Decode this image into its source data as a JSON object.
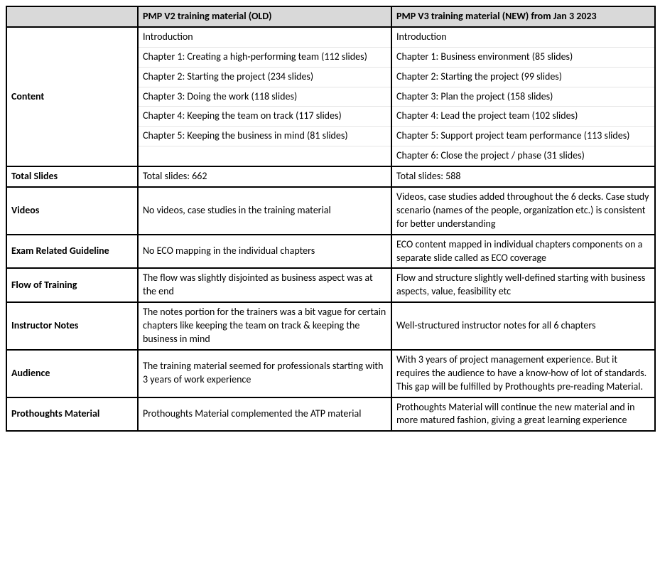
{
  "header": {
    "col1": "",
    "col2": "PMP V2 training material (OLD)",
    "col3": "PMP V3 training material (NEW) from Jan 3 2023"
  },
  "content": {
    "label": "Content",
    "rows": [
      {
        "old": "Introduction",
        "new": "Introduction"
      },
      {
        "old": "Chapter 1: Creating a high-performing team (112 slides)",
        "new": "Chapter 1: Business environment (85 slides)"
      },
      {
        "old": "Chapter 2: Starting the project (234 slides)",
        "new": "Chapter 2: Starting the project (99 slides)"
      },
      {
        "old": "Chapter 3: Doing the work (118 slides)",
        "new": "Chapter 3: Plan the project (158 slides)"
      },
      {
        "old": "Chapter 4: Keeping the team on track (117 slides)",
        "new": "Chapter 4: Lead the project team (102 slides)"
      },
      {
        "old": "Chapter 5: Keeping the business in mind (81 slides)",
        "new": "Chapter 5: Support project team performance (113 slides)"
      },
      {
        "old": "",
        "new": "Chapter 6: Close the project / phase (31 slides)"
      }
    ]
  },
  "totalSlides": {
    "label": "Total Slides",
    "old": "Total slides: 662",
    "new": "Total slides: 588"
  },
  "videos": {
    "label": "Videos",
    "old": "No videos, case studies in the training material",
    "new": "Videos, case studies added throughout the 6 decks. Case study scenario (names of the people, organization etc.) is consistent for better understanding"
  },
  "examGuideline": {
    "label": "Exam Related Guideline",
    "old": "No ECO mapping in the individual chapters",
    "new": "ECO content mapped in individual chapters components on a separate slide called as ECO coverage"
  },
  "flow": {
    "label": "Flow of Training",
    "old": "The flow was slightly disjointed as business aspect was at the end",
    "new": "Flow and structure slightly well-defined starting with business aspects, value, feasibility etc"
  },
  "instructorNotes": {
    "label": "Instructor Notes",
    "old": "The notes portion for the trainers was a bit vague for certain chapters like keeping the team on track & keeping the business in mind",
    "new": "Well-structured instructor notes for all 6 chapters"
  },
  "audience": {
    "label": "Audience",
    "old": "The training material seemed for professionals starting with 3  years of work experience",
    "new": "With 3 years of project management experience. But it requires the audience to have a know-how of lot of standards. This gap will be fulfilled by Prothoughts pre-reading Material."
  },
  "prothoughts": {
    "label": "Prothoughts Material",
    "old": "Prothoughts Material complemented the ATP material",
    "new": "Prothoughts Material will continue the new material and in more matured fashion, giving a great learning experience"
  }
}
